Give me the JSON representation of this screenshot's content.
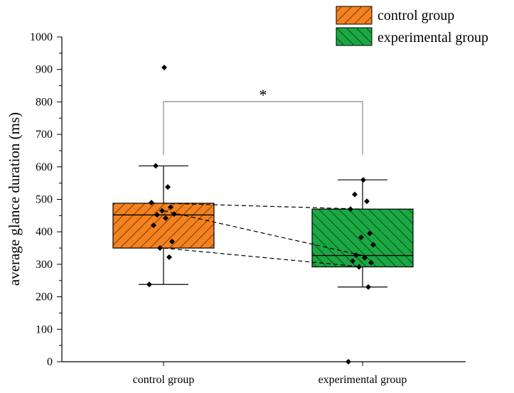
{
  "chart_data": {
    "type": "box",
    "ylabel": "average glance duration (ms)",
    "xlabel": "",
    "ylim": [
      0,
      1000
    ],
    "yticks": [
      "0",
      "100",
      "200",
      "300",
      "400",
      "500",
      "600",
      "700",
      "800",
      "900",
      "1000"
    ],
    "categories": [
      "control group",
      "experimental group"
    ],
    "legend": {
      "position": "top-right",
      "entries": [
        "control group",
        "experimental group"
      ]
    },
    "significance": {
      "label": "*",
      "between": [
        "control group",
        "experimental group"
      ],
      "y": 800
    },
    "series": [
      {
        "name": "control group",
        "color": "#f58220",
        "hatch": "forward-diagonal",
        "whisker_low": 238,
        "q1": 350,
        "median": 452,
        "mean": 465,
        "q3": 488,
        "whisker_high": 603,
        "points": [
          238,
          322,
          350,
          370,
          420,
          442,
          452,
          455,
          465,
          476,
          490,
          538,
          603,
          906
        ]
      },
      {
        "name": "experimental group",
        "color": "#1aa843",
        "hatch": "backward-diagonal",
        "whisker_low": 230,
        "q1": 292,
        "median": 327,
        "mean": 327,
        "q3": 470,
        "whisker_high": 560,
        "points": [
          0,
          230,
          292,
          305,
          310,
          320,
          328,
          360,
          383,
          395,
          470,
          494,
          515,
          560
        ]
      }
    ],
    "connector_lines": [
      {
        "from": 488,
        "to": 470
      },
      {
        "from": 465,
        "to": 327
      },
      {
        "from": 350,
        "to": 292
      }
    ]
  }
}
